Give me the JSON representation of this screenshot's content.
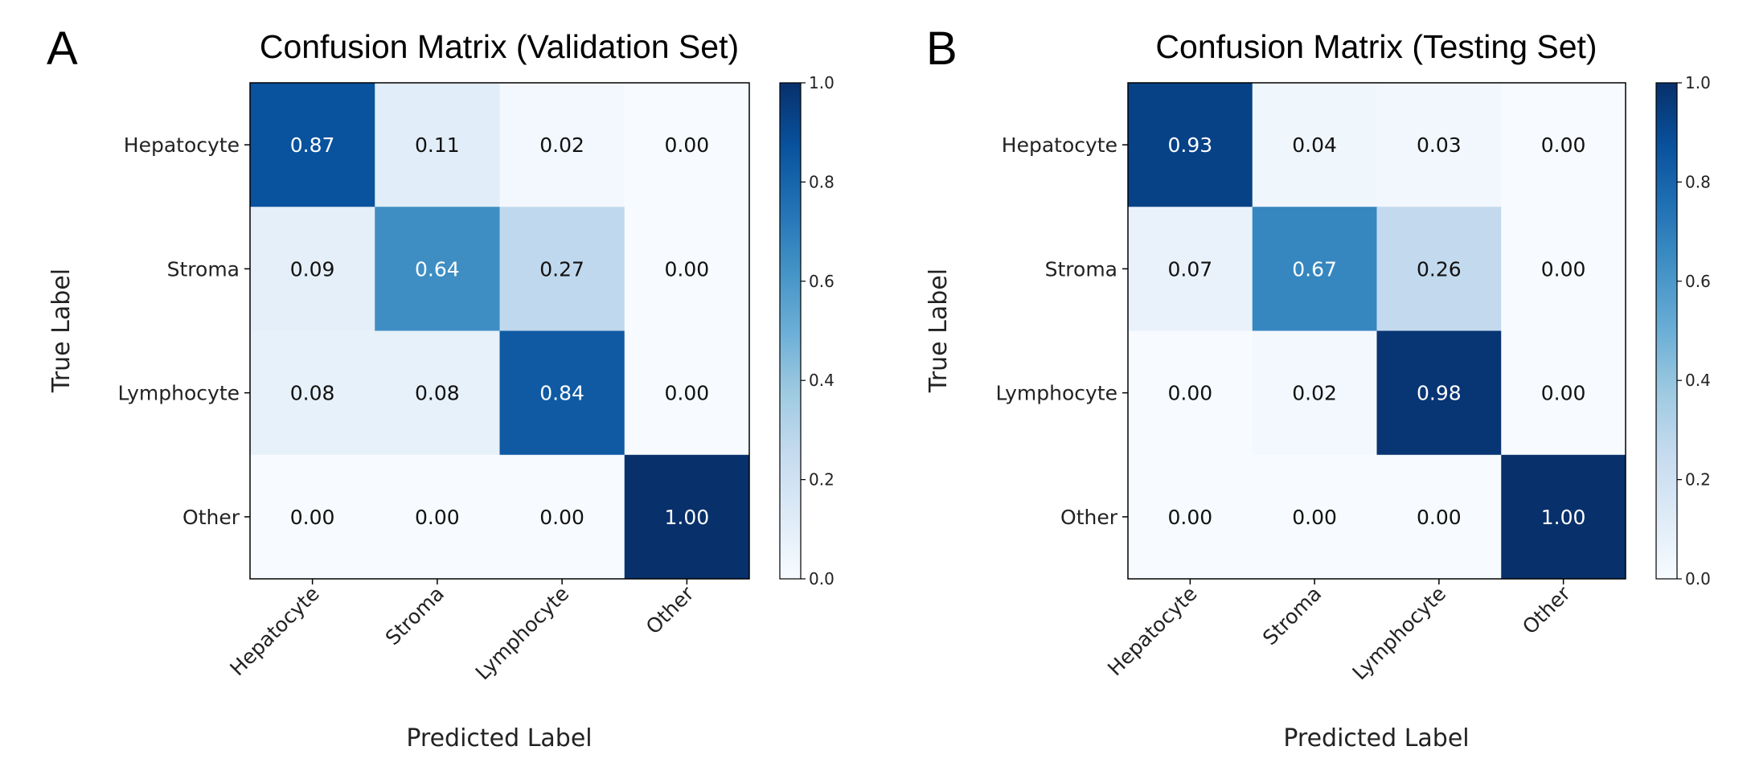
{
  "figure": {
    "panels": [
      "A",
      "B"
    ]
  },
  "chart_data": [
    {
      "type": "heatmap",
      "panel_label": "A",
      "title": "Confusion Matrix (Validation Set)",
      "xlabel": "Predicted Label",
      "ylabel": "True Label",
      "x_categories": [
        "Hepatocyte",
        "Stroma",
        "Lymphocyte",
        "Other"
      ],
      "y_categories": [
        "Hepatocyte",
        "Stroma",
        "Lymphocyte",
        "Other"
      ],
      "values": [
        [
          0.87,
          0.11,
          0.02,
          0.0
        ],
        [
          0.09,
          0.64,
          0.27,
          0.0
        ],
        [
          0.08,
          0.08,
          0.84,
          0.0
        ],
        [
          0.0,
          0.0,
          0.0,
          1.0
        ]
      ],
      "value_labels": [
        [
          "0.87",
          "0.11",
          "0.02",
          "0.00"
        ],
        [
          "0.09",
          "0.64",
          "0.27",
          "0.00"
        ],
        [
          "0.08",
          "0.08",
          "0.84",
          "0.00"
        ],
        [
          "0.00",
          "0.00",
          "0.00",
          "1.00"
        ]
      ],
      "colorbar": {
        "min": 0.0,
        "max": 1.0,
        "ticks": [
          "0.0",
          "0.2",
          "0.4",
          "0.6",
          "0.8",
          "1.0"
        ],
        "colormap": "Blues"
      }
    },
    {
      "type": "heatmap",
      "panel_label": "B",
      "title": "Confusion Matrix (Testing Set)",
      "xlabel": "Predicted Label",
      "ylabel": "True Label",
      "x_categories": [
        "Hepatocyte",
        "Stroma",
        "Lymphocyte",
        "Other"
      ],
      "y_categories": [
        "Hepatocyte",
        "Stroma",
        "Lymphocyte",
        "Other"
      ],
      "values": [
        [
          0.93,
          0.04,
          0.03,
          0.0
        ],
        [
          0.07,
          0.67,
          0.26,
          0.0
        ],
        [
          0.0,
          0.02,
          0.98,
          0.0
        ],
        [
          0.0,
          0.0,
          0.0,
          1.0
        ]
      ],
      "value_labels": [
        [
          "0.93",
          "0.04",
          "0.03",
          "0.00"
        ],
        [
          "0.07",
          "0.67",
          "0.26",
          "0.00"
        ],
        [
          "0.00",
          "0.02",
          "0.98",
          "0.00"
        ],
        [
          "0.00",
          "0.00",
          "0.00",
          "1.00"
        ]
      ],
      "colorbar": {
        "min": 0.0,
        "max": 1.0,
        "ticks": [
          "0.0",
          "0.2",
          "0.4",
          "0.6",
          "0.8",
          "1.0"
        ],
        "colormap": "Blues"
      }
    }
  ]
}
